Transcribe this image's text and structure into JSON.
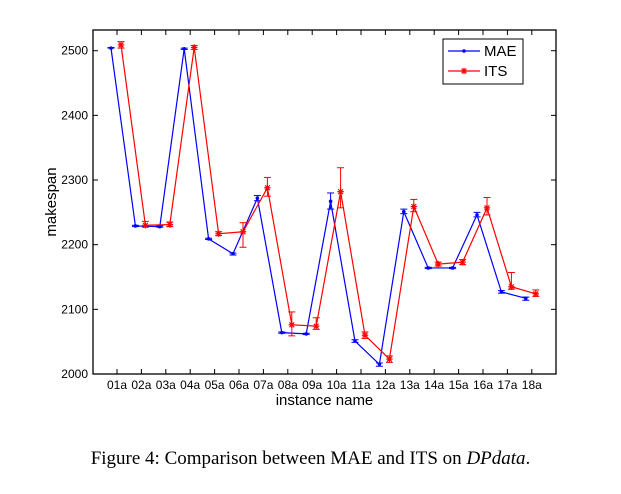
{
  "chart_data": {
    "type": "line",
    "title": "",
    "xlabel": "instance name",
    "ylabel": "makespan",
    "ylim": [
      2000,
      2520
    ],
    "yticks": [
      2000,
      2100,
      2200,
      2300,
      2400,
      2500
    ],
    "grid": false,
    "legend_position": "top-right",
    "categories": [
      "01a",
      "02a",
      "03a",
      "04a",
      "05a",
      "06a",
      "07a",
      "08a",
      "09a",
      "10a",
      "11a",
      "12a",
      "13a",
      "14a",
      "15a",
      "16a",
      "17a",
      "18a"
    ],
    "series": [
      {
        "name": "MAE",
        "color": "#0000ff",
        "marker": "dot",
        "values": [
          2504,
          2229,
          2228,
          2503,
          2209,
          2186,
          2272,
          2064,
          2062,
          2267,
          2051,
          2015,
          2251,
          2164,
          2164,
          2246,
          2127,
          2117
        ],
        "err_low": [
          2504,
          2228,
          2227,
          2502,
          2208,
          2184,
          2268,
          2063,
          2061,
          2255,
          2049,
          2012,
          2248,
          2163,
          2163,
          2243,
          2125,
          2114
        ],
        "err_high": [
          2505,
          2230,
          2229,
          2504,
          2210,
          2187,
          2276,
          2065,
          2063,
          2280,
          2053,
          2017,
          2255,
          2165,
          2165,
          2250,
          2129,
          2119
        ]
      },
      {
        "name": "ITS",
        "color": "#ff0000",
        "marker": "star",
        "values": [
          2509,
          2230,
          2231,
          2505,
          2217,
          2220,
          2288,
          2076,
          2074,
          2282,
          2060,
          2023,
          2259,
          2170,
          2173,
          2257,
          2135,
          2124
        ],
        "err_low": [
          2504,
          2227,
          2228,
          2502,
          2214,
          2196,
          2275,
          2059,
          2069,
          2257,
          2055,
          2018,
          2251,
          2167,
          2169,
          2246,
          2131,
          2120
        ],
        "err_high": [
          2514,
          2236,
          2235,
          2508,
          2220,
          2234,
          2304,
          2096,
          2087,
          2319,
          2065,
          2028,
          2270,
          2173,
          2177,
          2273,
          2157,
          2130
        ]
      }
    ]
  },
  "caption": {
    "prefix": "Figure 4: Comparison between MAE and ITS on ",
    "italic": "DPdata",
    "suffix": "."
  }
}
